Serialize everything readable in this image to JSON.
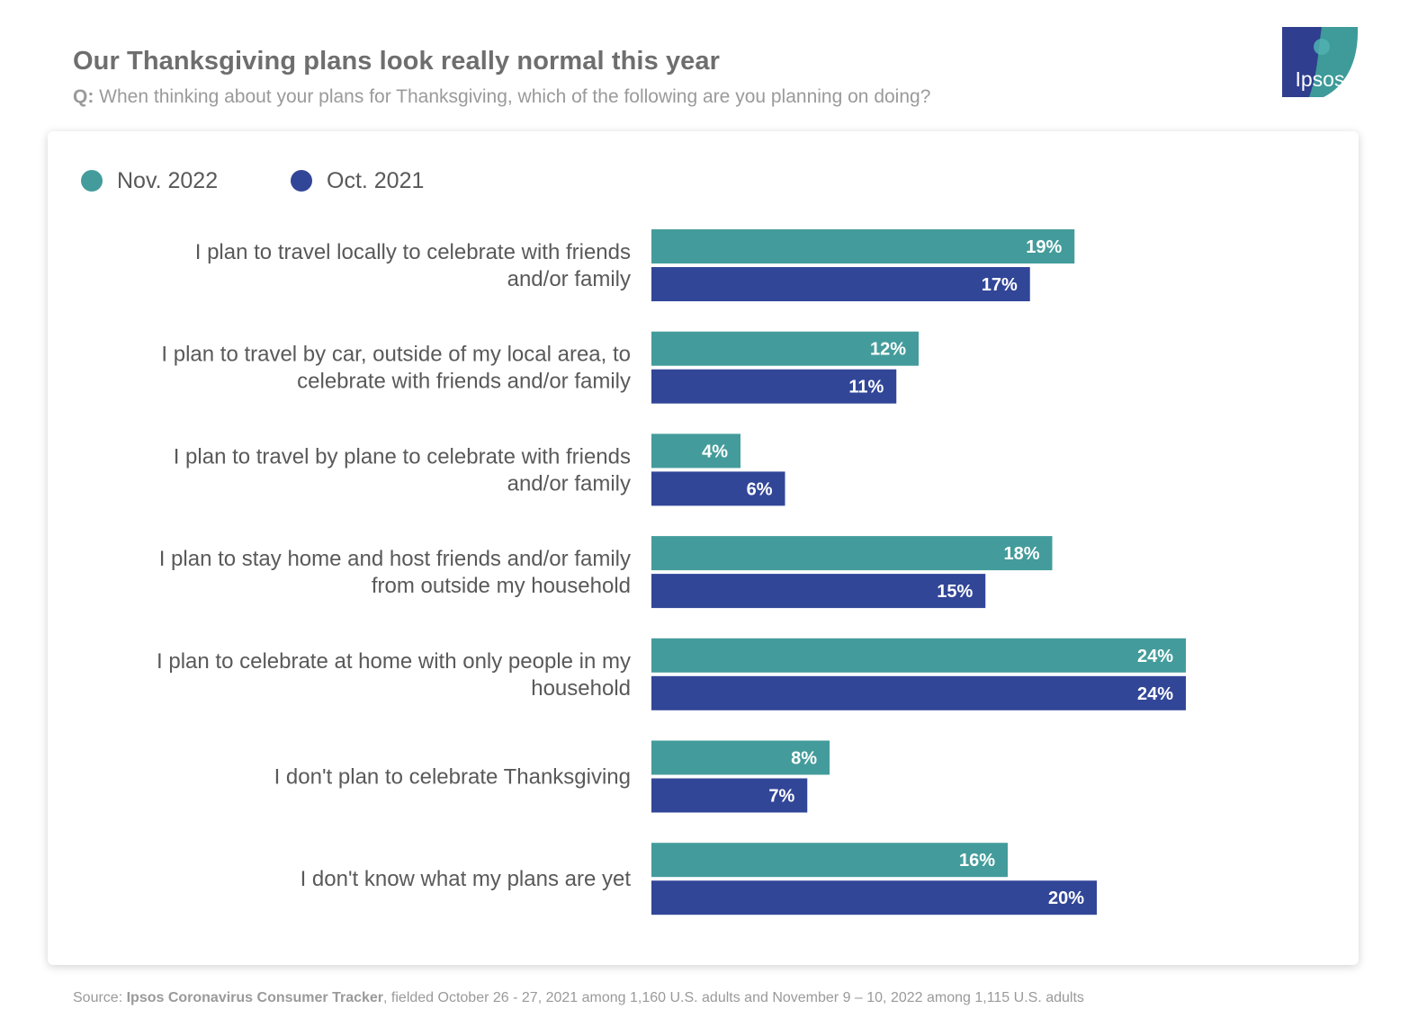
{
  "title": "Our Thanksgiving plans look really normal this year",
  "subtitle": {
    "prefix": "Q:",
    "text": "When thinking about your plans for Thanksgiving, which of the following are you planning on doing?"
  },
  "logo": {
    "text": "Ipsos",
    "colors": {
      "left": "#2f3e8e",
      "right": "#3e9b9a"
    }
  },
  "source": {
    "prefix": "Source: ",
    "bold": "Ipsos Coronavirus Consumer Tracker",
    "rest": ", fielded October 26 - 27, 2021 among 1,160 U.S. adults and November 9 – 10, 2022 among 1,115 U.S. adults"
  },
  "colors": {
    "nov2022": "#439c9b",
    "oct2021": "#324698"
  },
  "chart_data": {
    "type": "bar",
    "orientation": "horizontal",
    "legend_position": "top-left",
    "grid": false,
    "value_suffix": "%",
    "xlim": [
      0,
      24
    ],
    "categories": [
      [
        "I plan to travel locally to celebrate with friends",
        "and/or family"
      ],
      [
        "I plan to travel by car, outside of my local area, to",
        "celebrate with friends and/or family"
      ],
      [
        "I plan to travel by plane to celebrate with friends",
        "and/or family"
      ],
      [
        "I plan to stay home and host friends and/or family",
        "from outside my household"
      ],
      [
        "I plan to celebrate at home with only people in my",
        "household"
      ],
      [
        "I don't plan to celebrate Thanksgiving"
      ],
      [
        "I don't know what my plans are yet"
      ]
    ],
    "series": [
      {
        "name": "Nov. 2022",
        "color": "#439c9b",
        "values": [
          19,
          12,
          4,
          18,
          24,
          8,
          16
        ]
      },
      {
        "name": "Oct. 2021",
        "color": "#324698",
        "values": [
          17,
          11,
          6,
          15,
          24,
          7,
          20
        ]
      }
    ]
  }
}
